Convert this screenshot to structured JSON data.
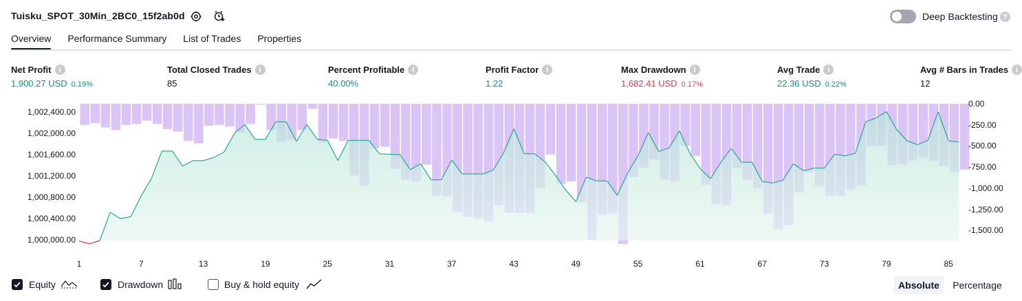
{
  "header": {
    "title": "Tuisku_SPOT_30Min_2BC0_15f2ab0d",
    "deep_backtesting_label": "Deep Backtesting",
    "deep_backtesting_on": false
  },
  "tabs": [
    "Overview",
    "Performance Summary",
    "List of Trades",
    "Properties"
  ],
  "active_tab": "Overview",
  "metrics": [
    {
      "label": "Net Profit",
      "value": "1,900.27 USD",
      "pct": "0.19%",
      "color": "green"
    },
    {
      "label": "Total Closed Trades",
      "value": "85",
      "pct": "",
      "color": "dark"
    },
    {
      "label": "Percent Profitable",
      "value": "40.00%",
      "pct": "",
      "color": "green"
    },
    {
      "label": "Profit Factor",
      "value": "1.22",
      "pct": "",
      "color": "green"
    },
    {
      "label": "Max Drawdown",
      "value": "1,682.41 USD",
      "pct": "0.17%",
      "color": "red"
    },
    {
      "label": "Avg Trade",
      "value": "22.36 USD",
      "pct": "0.22%",
      "color": "green"
    },
    {
      "label": "Avg # Bars in Trades",
      "value": "12",
      "pct": "",
      "color": "dark"
    }
  ],
  "chart_data": {
    "type": "area",
    "left_axis_ticks": [
      "1,002,400.00",
      "1,002,000.00",
      "1,001,600.00",
      "1,001,200.00",
      "1,000,800.00",
      "1,000,400.00",
      "1,000,000.00"
    ],
    "right_axis_ticks": [
      "0.00",
      "-250.00",
      "-500.00",
      "-750.00",
      "-1,000.00",
      "-1,250.00",
      "-1,500.00"
    ],
    "x_ticks": [
      "1",
      "7",
      "13",
      "19",
      "25",
      "31",
      "37",
      "43",
      "49",
      "55",
      "61",
      "67",
      "73",
      "79",
      "85"
    ],
    "equity_ylim": [
      999950,
      1002650
    ],
    "drawdown_ylim": [
      -1700,
      0
    ],
    "series": [
      {
        "name": "Equity",
        "color": "#22ab94",
        "values": [
          999990,
          999940,
          1000000,
          1000530,
          1000410,
          1000450,
          1000840,
          1001170,
          1001680,
          1001680,
          1001400,
          1001500,
          1001500,
          1001560,
          1001660,
          1002010,
          1002180,
          1001900,
          1001900,
          1002230,
          1002230,
          1001860,
          1002180,
          1001900,
          1001880,
          1001500,
          1001880,
          1001880,
          1001880,
          1001630,
          1001620,
          1001610,
          1001330,
          1001440,
          1001140,
          1001140,
          1001510,
          1001250,
          1001250,
          1001250,
          1001320,
          1001640,
          1002100,
          1001630,
          1001630,
          1001480,
          1001230,
          1000950,
          1000730,
          1001190,
          1001120,
          1001120,
          1000850,
          1001270,
          1001590,
          1002030,
          1001670,
          1001740,
          1002060,
          1001640,
          1001350,
          1001160,
          1001470,
          1001730,
          1001470,
          1001470,
          1001110,
          1001080,
          1001130,
          1001440,
          1001310,
          1001360,
          1001360,
          1001620,
          1001590,
          1001640,
          1002230,
          1002300,
          1002420,
          1002080,
          1001870,
          1001800,
          1001880,
          1002420,
          1001870,
          1001850
        ]
      },
      {
        "name": "Drawdown",
        "color": "#b39ddb",
        "values": [
          -250,
          -230,
          -280,
          -310,
          -250,
          -240,
          -200,
          -240,
          -300,
          -330,
          -440,
          -470,
          -260,
          -250,
          -270,
          -340,
          -240,
          -10,
          -310,
          -450,
          -430,
          -310,
          -60,
          -460,
          -410,
          -440,
          -850,
          -970,
          -530,
          -510,
          -770,
          -900,
          -920,
          -720,
          -1090,
          -1100,
          -1280,
          -1340,
          -1360,
          -1390,
          -1200,
          -1290,
          -1290,
          -1290,
          -1000,
          -600,
          -950,
          -920,
          -1170,
          -1610,
          -1310,
          -1300,
          -1660,
          -870,
          -760,
          -660,
          -900,
          -920,
          -500,
          -620,
          -960,
          -1190,
          -1200,
          -760,
          -900,
          -1000,
          -1300,
          -1490,
          -1440,
          -1050,
          -810,
          -980,
          -1090,
          -1090,
          -1020,
          -970,
          -500,
          -500,
          -730,
          -720,
          -670,
          -640,
          -680,
          -740,
          -810,
          -780
        ]
      }
    ]
  },
  "legend": {
    "equity_label": "Equity",
    "drawdown_label": "Drawdown",
    "buyhold_label": "Buy & hold equity",
    "equity_checked": true,
    "drawdown_checked": true,
    "buyhold_checked": false
  },
  "mode": {
    "absolute_label": "Absolute",
    "percentage_label": "Percentage",
    "selected": "Absolute"
  },
  "icons": {
    "settings": "gear-icon",
    "add_alert": "add-alert-icon",
    "help": "help-icon"
  }
}
